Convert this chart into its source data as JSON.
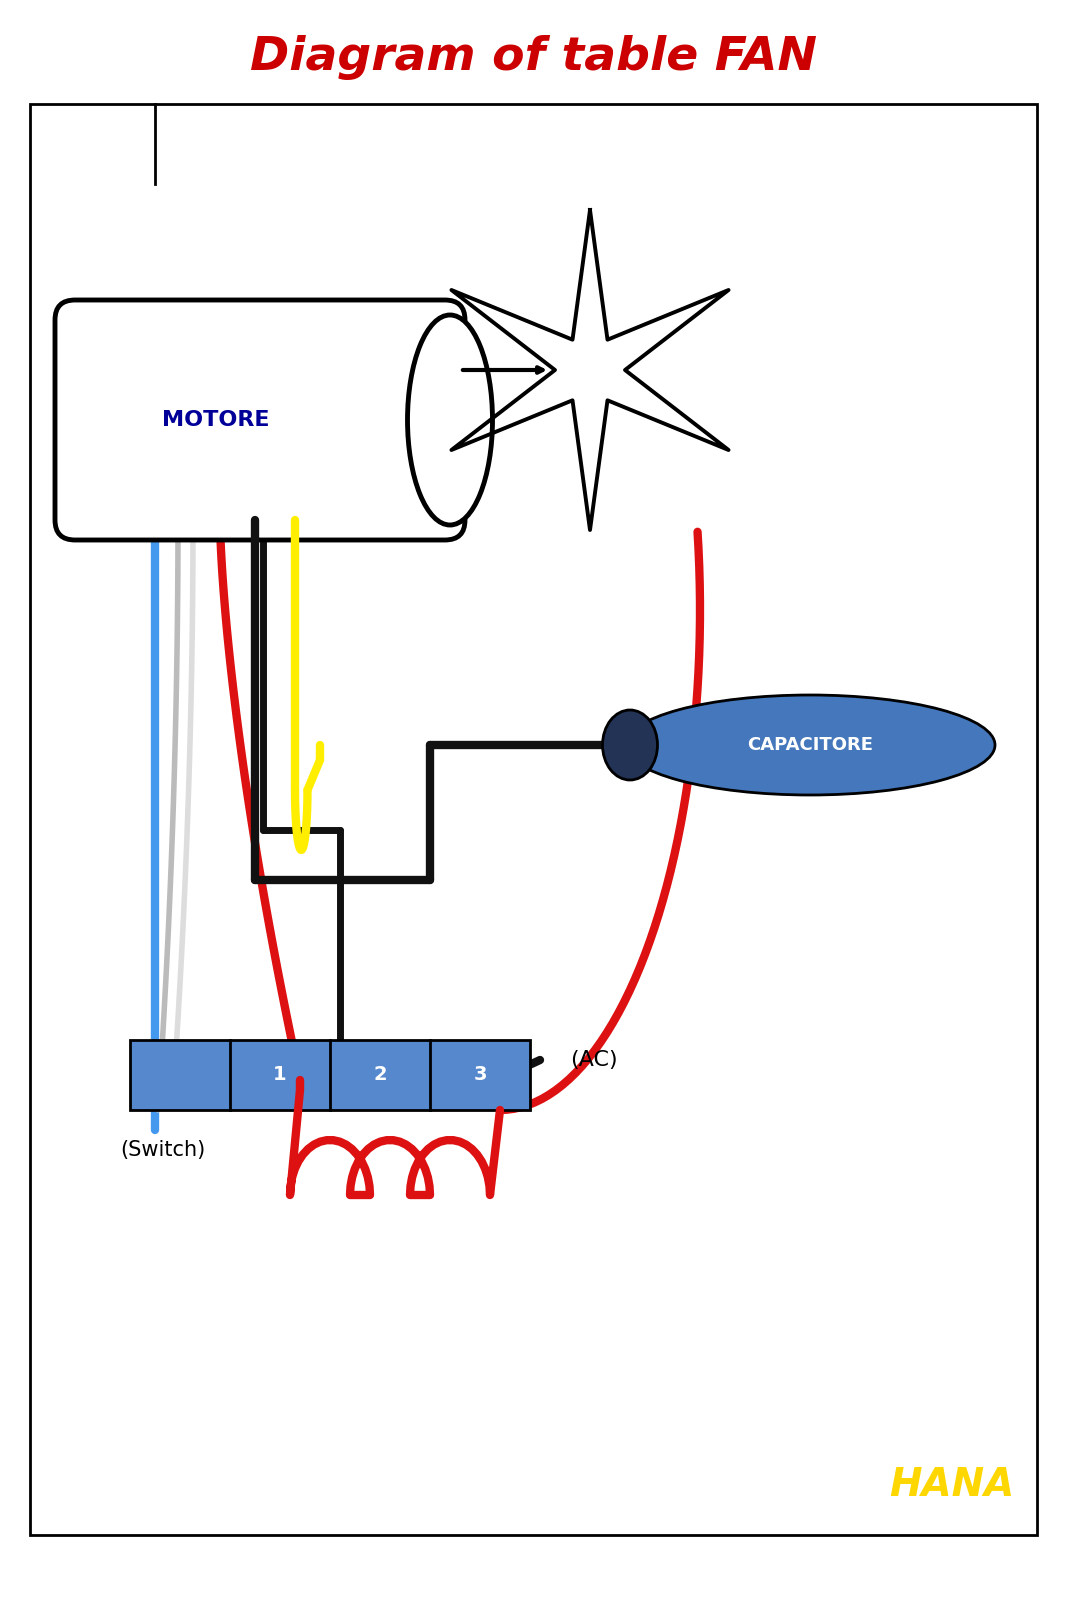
{
  "title": "Diagram of table FAN",
  "title_color": "#CC0000",
  "title_fontsize": 34,
  "bg_color": "#ffffff",
  "hana_text": "HANA",
  "hana_color": "#FFD700",
  "motore_label": "MOTORE",
  "motore_color": "#000099",
  "capacitore_label": "CAPACITORE",
  "switch_label": "(Switch)",
  "ac_label": "(AC)",
  "switch_numbers": [
    "1",
    "2",
    "3"
  ],
  "wire_blue": "#4499EE",
  "wire_gray1": "#BBBBBB",
  "wire_gray2": "#DDDDDD",
  "wire_red": "#DD1111",
  "wire_black": "#111111",
  "wire_yellow": "#FFEE00",
  "cap_color": "#4477BB",
  "switch_color": "#5588CC",
  "lw": 5
}
